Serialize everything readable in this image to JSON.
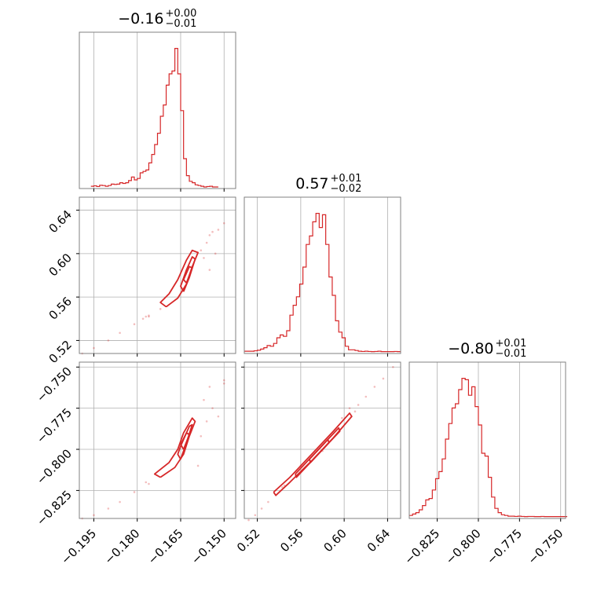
{
  "chart_data": {
    "type": "corner",
    "colors": {
      "series": "#d62728",
      "grid": "#b0b0b0",
      "frame": "#808080"
    },
    "grid": true,
    "parameters": [
      {
        "range": [
          -0.2,
          -0.146
        ],
        "ticks": [
          "−0.195",
          "−0.180",
          "−0.165",
          "−0.150"
        ],
        "tick_values": [
          -0.195,
          -0.18,
          -0.165,
          -0.15
        ],
        "title": {
          "value": "−0.16",
          "plus": "+0.00",
          "minus": "−0.01"
        }
      },
      {
        "range": [
          0.508,
          0.652
        ],
        "ticks": [
          "0.52",
          "0.56",
          "0.60",
          "0.64"
        ],
        "tick_values": [
          0.52,
          0.56,
          0.6,
          0.64
        ],
        "title": {
          "value": "0.57",
          "plus": "+0.01",
          "minus": "−0.02"
        }
      },
      {
        "range": [
          -0.842,
          -0.747
        ],
        "ticks": [
          "−0.825",
          "−0.800",
          "−0.775",
          "−0.750"
        ],
        "tick_values": [
          -0.825,
          -0.8,
          -0.775,
          -0.75
        ],
        "title": {
          "value": "−0.80",
          "plus": "+0.01",
          "minus": "−0.01"
        }
      }
    ],
    "histograms": [
      {
        "param": 0,
        "x0": -0.196,
        "dx": 0.001,
        "heights": [
          0.005,
          0.008,
          0.003,
          0.012,
          0.01,
          0.005,
          0.01,
          0.02,
          0.018,
          0.02,
          0.03,
          0.025,
          0.03,
          0.045,
          0.07,
          0.05,
          0.06,
          0.1,
          0.11,
          0.12,
          0.17,
          0.23,
          0.3,
          0.38,
          0.5,
          0.58,
          0.72,
          0.8,
          0.82,
          0.98,
          0.8,
          0.54,
          0.2,
          0.08,
          0.04,
          0.03,
          0.015,
          0.01,
          0.005,
          0.0,
          0.003,
          0.005,
          0.0,
          0.0
        ]
      },
      {
        "param": 1,
        "x0": 0.508,
        "dx": 0.003,
        "heights": [
          0.005,
          0.005,
          0.005,
          0.008,
          0.012,
          0.02,
          0.03,
          0.045,
          0.04,
          0.06,
          0.1,
          0.12,
          0.11,
          0.15,
          0.26,
          0.33,
          0.39,
          0.48,
          0.6,
          0.76,
          0.82,
          0.92,
          0.98,
          0.88,
          0.97,
          0.76,
          0.53,
          0.4,
          0.22,
          0.14,
          0.1,
          0.04,
          0.015,
          0.015,
          0.01,
          0.005,
          0.003,
          0.005,
          0.003,
          0.002,
          0.003,
          0.005,
          0.002,
          0.002,
          0.002,
          0.002,
          0.003,
          0.002
        ]
      },
      {
        "param": 2,
        "x0": -0.842,
        "dx": 0.002,
        "heights": [
          0.01,
          0.02,
          0.03,
          0.05,
          0.08,
          0.12,
          0.13,
          0.19,
          0.27,
          0.32,
          0.41,
          0.55,
          0.66,
          0.77,
          0.8,
          0.9,
          0.98,
          0.97,
          0.86,
          0.92,
          0.78,
          0.65,
          0.45,
          0.43,
          0.28,
          0.14,
          0.06,
          0.03,
          0.015,
          0.01,
          0.005,
          0.005,
          0.003,
          0.005,
          0.003,
          0.002,
          0.003,
          0.003,
          0.002,
          0.002,
          0.003,
          0.002,
          0.002,
          0.002,
          0.002,
          0.002,
          0.002,
          0.002
        ]
      }
    ],
    "pairs": [
      {
        "x_param": 0,
        "y_param": 1,
        "contours": [
          [
            [
              -0.17,
              0.551
            ],
            [
              -0.166,
              0.559
            ],
            [
              -0.163,
              0.572
            ],
            [
              -0.161,
              0.588
            ],
            [
              -0.159,
              0.601
            ],
            [
              -0.161,
              0.603
            ],
            [
              -0.163,
              0.594
            ],
            [
              -0.166,
              0.576
            ],
            [
              -0.169,
              0.563
            ],
            [
              -0.172,
              0.555
            ],
            [
              -0.17,
              0.551
            ]
          ],
          [
            [
              -0.164,
              0.565
            ],
            [
              -0.162,
              0.578
            ],
            [
              -0.16,
              0.595
            ],
            [
              -0.161,
              0.597
            ],
            [
              -0.163,
              0.585
            ],
            [
              -0.165,
              0.57
            ],
            [
              -0.164,
              0.565
            ]
          ],
          [
            [
              -0.163,
              0.573
            ],
            [
              -0.161,
              0.587
            ],
            [
              -0.162,
              0.588
            ],
            [
              -0.164,
              0.576
            ],
            [
              -0.163,
              0.573
            ]
          ]
        ],
        "dots": [
          [
            -0.176,
            0.543
          ],
          [
            -0.181,
            0.535
          ],
          [
            -0.186,
            0.527
          ],
          [
            -0.19,
            0.52
          ],
          [
            -0.195,
            0.513
          ],
          [
            -0.199,
            0.508
          ],
          [
            -0.172,
            0.549
          ],
          [
            -0.178,
            0.54
          ],
          [
            -0.156,
            0.61
          ],
          [
            -0.155,
            0.617
          ],
          [
            -0.154,
            0.62
          ],
          [
            -0.152,
            0.622
          ],
          [
            -0.15,
            0.628
          ],
          [
            -0.153,
            0.6
          ],
          [
            -0.155,
            0.585
          ],
          [
            -0.158,
            0.603
          ],
          [
            -0.157,
            0.596
          ],
          [
            -0.176,
            0.542
          ],
          [
            -0.177,
            0.542
          ]
        ]
      },
      {
        "x_param": 0,
        "y_param": 2,
        "contours": [
          [
            [
              -0.172,
              -0.817
            ],
            [
              -0.167,
              -0.811
            ],
            [
              -0.164,
              -0.803
            ],
            [
              -0.162,
              -0.792
            ],
            [
              -0.16,
              -0.783
            ],
            [
              -0.161,
              -0.781
            ],
            [
              -0.164,
              -0.79
            ],
            [
              -0.166,
              -0.8
            ],
            [
              -0.169,
              -0.808
            ],
            [
              -0.174,
              -0.815
            ],
            [
              -0.172,
              -0.817
            ]
          ],
          [
            [
              -0.165,
              -0.806
            ],
            [
              -0.163,
              -0.796
            ],
            [
              -0.161,
              -0.785
            ],
            [
              -0.162,
              -0.786
            ],
            [
              -0.165,
              -0.798
            ],
            [
              -0.166,
              -0.803
            ],
            [
              -0.165,
              -0.806
            ]
          ],
          [
            [
              -0.164,
              -0.8
            ],
            [
              -0.162,
              -0.791
            ],
            [
              -0.163,
              -0.79
            ],
            [
              -0.165,
              -0.797
            ],
            [
              -0.164,
              -0.8
            ]
          ]
        ],
        "dots": [
          [
            -0.176,
            -0.821
          ],
          [
            -0.181,
            -0.826
          ],
          [
            -0.186,
            -0.832
          ],
          [
            -0.19,
            -0.836
          ],
          [
            -0.195,
            -0.84
          ],
          [
            -0.199,
            -0.842
          ],
          [
            -0.157,
            -0.77
          ],
          [
            -0.155,
            -0.762
          ],
          [
            -0.154,
            -0.775
          ],
          [
            -0.152,
            -0.78
          ],
          [
            -0.15,
            -0.758
          ],
          [
            -0.15,
            -0.76
          ],
          [
            -0.158,
            -0.792
          ],
          [
            -0.159,
            -0.81
          ],
          [
            -0.156,
            -0.783
          ],
          [
            -0.177,
            -0.82
          ]
        ]
      },
      {
        "x_param": 1,
        "y_param": 2,
        "contours": [
          [
            [
              0.535,
              -0.826
            ],
            [
              0.55,
              -0.817
            ],
            [
              0.57,
              -0.803
            ],
            [
              0.59,
              -0.789
            ],
            [
              0.605,
              -0.778
            ],
            [
              0.607,
              -0.78
            ],
            [
              0.59,
              -0.793
            ],
            [
              0.57,
              -0.807
            ],
            [
              0.55,
              -0.82
            ],
            [
              0.537,
              -0.828
            ],
            [
              0.535,
              -0.826
            ]
          ],
          [
            [
              0.555,
              -0.815
            ],
            [
              0.575,
              -0.801
            ],
            [
              0.595,
              -0.787
            ],
            [
              0.596,
              -0.789
            ],
            [
              0.576,
              -0.803
            ],
            [
              0.556,
              -0.817
            ],
            [
              0.555,
              -0.815
            ]
          ],
          [
            [
              0.568,
              -0.806
            ],
            [
              0.585,
              -0.794
            ],
            [
              0.586,
              -0.796
            ],
            [
              0.569,
              -0.808
            ],
            [
              0.568,
              -0.806
            ]
          ]
        ],
        "dots": [
          [
            0.53,
            -0.832
          ],
          [
            0.524,
            -0.836
          ],
          [
            0.518,
            -0.84
          ],
          [
            0.512,
            -0.843
          ],
          [
            0.543,
            -0.823
          ],
          [
            0.545,
            -0.822
          ],
          [
            0.613,
            -0.773
          ],
          [
            0.62,
            -0.768
          ],
          [
            0.628,
            -0.762
          ],
          [
            0.636,
            -0.757
          ],
          [
            0.645,
            -0.75
          ],
          [
            0.605,
            -0.775
          ],
          [
            0.61,
            -0.777
          ],
          [
            0.598,
            -0.781
          ],
          [
            0.58,
            -0.801
          ],
          [
            0.56,
            -0.81
          ]
        ]
      }
    ]
  }
}
